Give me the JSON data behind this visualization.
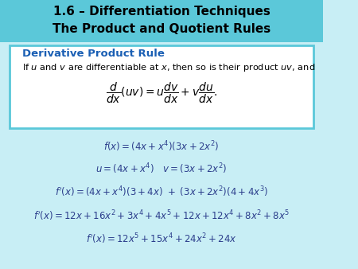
{
  "title_line1": "1.6 – Differentiation Techniques",
  "title_line2": "The Product and Quotient Rules",
  "title_bg_color": "#5bc8d9",
  "title_font_color": "#000000",
  "box_border_color": "#5bc8d9",
  "box_bg_color": "#ffffff",
  "rule_title": "Derivative Product Rule",
  "rule_title_color": "#1a5fb4",
  "rule_text": "If $u$ and $v$ are differentiable at $x$, then so is their product $uv$, and",
  "rule_formula": "$\\dfrac{d}{dx}(uv) = u\\dfrac{dv}{dx} + v\\dfrac{du}{dx}.$",
  "math_color": "#2c3e8c",
  "equations": [
    "$f(x) = (4x + x^{4})(3x + 2x^{2})$",
    "$u = (4x +x^{4}) \\quad v = (3x + 2x^{2})$",
    "$f^{\\prime}(x) = (4x +x^{4})(3 + 4x) \\ + \\ (3x + 2x^{2})(4 +4x^{3})$",
    "$f^{\\prime}(x) = 12x + 16x^{2} + 3x^{4} + 4x^{5} + 12x + 12x^{4} + 8x^{2} + 8x^{5}$",
    "$f^{\\prime}(x) = 12x^{5} + 15x^{4} + 24x^{2} + 24x$"
  ],
  "fig_bg_color": "#c8eef5"
}
